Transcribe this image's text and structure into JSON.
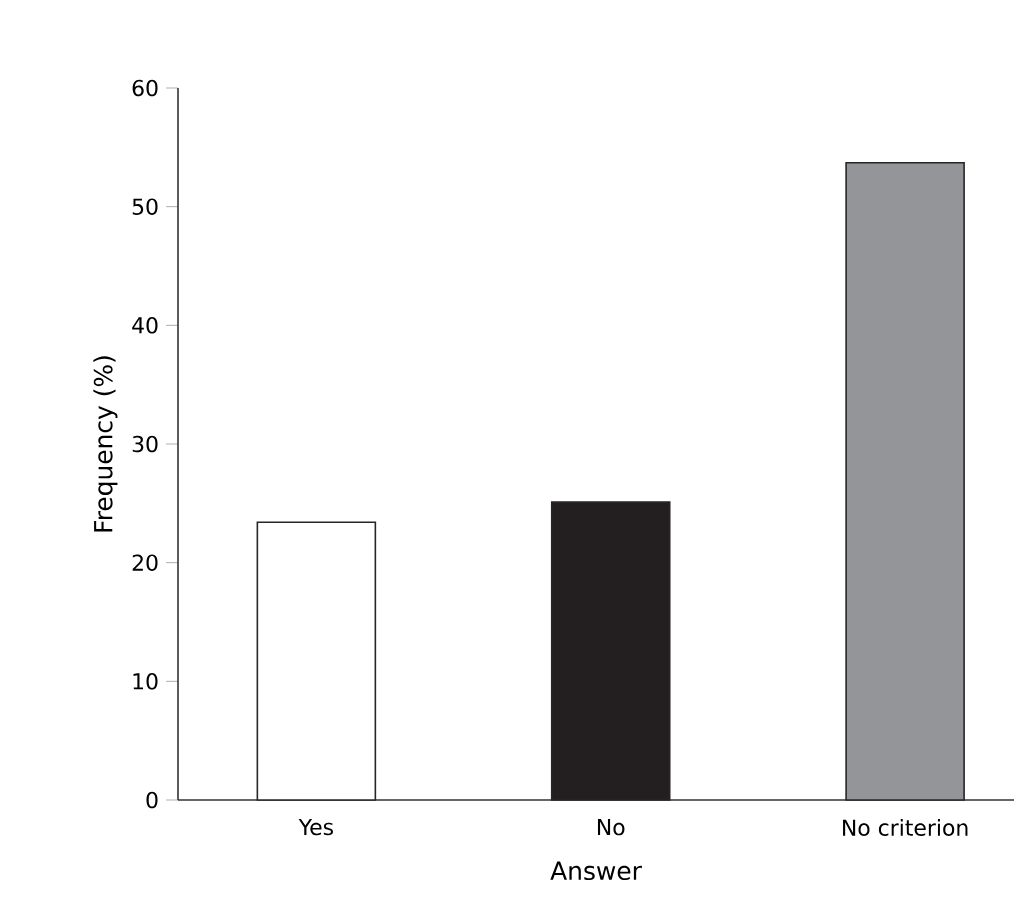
{
  "chart_data": {
    "type": "bar",
    "xlabel": "Answer",
    "ylabel": "Frequency (%)",
    "categories": [
      "Yes",
      "No",
      "No criterion"
    ],
    "values": [
      23.4,
      25.1,
      53.7
    ],
    "colors": [
      "#ffffff",
      "#231f20",
      "#939598"
    ],
    "ylim": [
      0,
      60
    ],
    "yticks": [
      0,
      10,
      20,
      30,
      40,
      50,
      60
    ]
  }
}
